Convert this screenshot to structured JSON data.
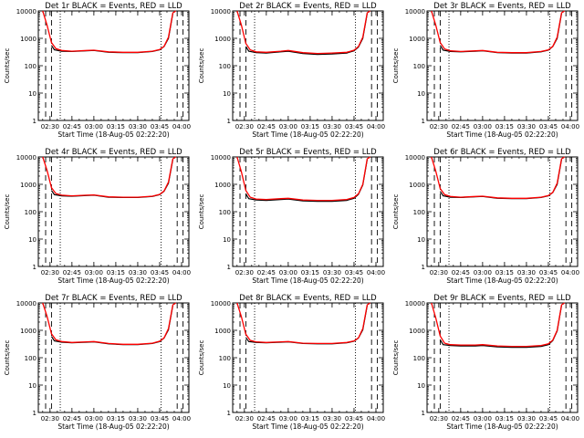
{
  "chart_data": [
    {
      "type": "line",
      "title": "Det 1r BLACK = Events, RED = LLD",
      "xlabel": "Start Time (18-Aug-05 02:22:20)",
      "ylabel": "Counts/sec",
      "yscale": "log",
      "ylim": [
        1,
        10000
      ],
      "xlim": [
        "02:22",
        "04:05"
      ],
      "x_ticks": [
        "02:30",
        "02:45",
        "03:00",
        "03:15",
        "03:30",
        "03:45",
        "04:00"
      ],
      "y_ticks": [
        "1",
        "10",
        "100",
        "1000",
        "10000"
      ],
      "vlines_dashed": [
        "02:27",
        "02:31",
        "03:57",
        "04:01"
      ],
      "vlines_dotted": [
        "02:37",
        "03:46"
      ],
      "series": [
        {
          "name": "BLACK = Events",
          "color": "#000000",
          "x": [
            "02:31",
            "02:33",
            "02:38",
            "02:45",
            "02:55",
            "03:00",
            "03:10",
            "03:20",
            "03:30",
            "03:40",
            "03:45",
            "03:48",
            "03:51",
            "03:54"
          ],
          "values": [
            550,
            380,
            340,
            330,
            350,
            360,
            310,
            300,
            300,
            330,
            380,
            500,
            1000,
            8000
          ]
        },
        {
          "name": "RED = LLD",
          "color": "#ff0000",
          "x": [
            "02:25",
            "02:28",
            "02:31",
            "02:34",
            "02:38",
            "02:45",
            "02:55",
            "03:00",
            "03:10",
            "03:20",
            "03:30",
            "03:40",
            "03:45",
            "03:48",
            "03:51",
            "03:54",
            "03:56"
          ],
          "values": [
            10000,
            3000,
            700,
            420,
            360,
            340,
            360,
            370,
            320,
            310,
            310,
            340,
            390,
            510,
            1100,
            8500,
            10000
          ]
        }
      ]
    },
    {
      "type": "line",
      "title": "Det 2r BLACK = Events, RED = LLD",
      "xlabel": "Start Time (18-Aug-05 02:22:20)",
      "ylabel": "Counts/sec",
      "yscale": "log",
      "ylim": [
        1,
        10000
      ],
      "xlim": [
        "02:22",
        "04:05"
      ],
      "x_ticks": [
        "02:30",
        "02:45",
        "03:00",
        "03:15",
        "03:30",
        "03:45",
        "04:00"
      ],
      "y_ticks": [
        "1",
        "10",
        "100",
        "1000",
        "10000"
      ],
      "vlines_dashed": [
        "02:27",
        "02:31",
        "03:57",
        "04:01"
      ],
      "vlines_dotted": [
        "02:37",
        "03:46"
      ],
      "series": [
        {
          "name": "BLACK = Events",
          "color": "#000000",
          "x": [
            "02:31",
            "02:33",
            "02:38",
            "02:45",
            "02:55",
            "03:00",
            "03:10",
            "03:20",
            "03:30",
            "03:40",
            "03:45",
            "03:48",
            "03:51",
            "03:54"
          ],
          "values": [
            500,
            340,
            300,
            290,
            320,
            340,
            280,
            260,
            270,
            290,
            350,
            480,
            1000,
            8000
          ]
        },
        {
          "name": "RED = LLD",
          "color": "#ff0000",
          "x": [
            "02:25",
            "02:28",
            "02:31",
            "02:34",
            "02:38",
            "02:45",
            "02:55",
            "03:00",
            "03:10",
            "03:20",
            "03:30",
            "03:40",
            "03:45",
            "03:48",
            "03:51",
            "03:54",
            "03:56"
          ],
          "values": [
            10000,
            3000,
            650,
            380,
            320,
            310,
            340,
            360,
            300,
            280,
            290,
            310,
            370,
            500,
            1100,
            8500,
            10000
          ]
        }
      ]
    },
    {
      "type": "line",
      "title": "Det 3r BLACK = Events, RED = LLD",
      "xlabel": "Start Time (18-Aug-05 02:22:20)",
      "ylabel": "Counts/sec",
      "yscale": "log",
      "ylim": [
        1,
        10000
      ],
      "xlim": [
        "02:22",
        "04:05"
      ],
      "x_ticks": [
        "02:30",
        "02:45",
        "03:00",
        "03:15",
        "03:30",
        "03:45",
        "04:00"
      ],
      "y_ticks": [
        "1",
        "10",
        "100",
        "1000",
        "10000"
      ],
      "vlines_dashed": [
        "02:27",
        "02:31",
        "03:57",
        "04:01"
      ],
      "vlines_dotted": [
        "02:37",
        "03:46"
      ],
      "series": [
        {
          "name": "BLACK = Events",
          "color": "#000000",
          "x": [
            "02:31",
            "02:33",
            "02:38",
            "02:45",
            "02:55",
            "03:00",
            "03:10",
            "03:20",
            "03:30",
            "03:40",
            "03:45",
            "03:48",
            "03:51",
            "03:54"
          ],
          "values": [
            550,
            370,
            330,
            320,
            340,
            350,
            300,
            290,
            290,
            320,
            370,
            500,
            1000,
            8000
          ]
        },
        {
          "name": "RED = LLD",
          "color": "#ff0000",
          "x": [
            "02:25",
            "02:28",
            "02:31",
            "02:34",
            "02:38",
            "02:45",
            "02:55",
            "03:00",
            "03:10",
            "03:20",
            "03:30",
            "03:40",
            "03:45",
            "03:48",
            "03:51",
            "03:54",
            "03:56"
          ],
          "values": [
            10000,
            3000,
            700,
            410,
            350,
            330,
            350,
            360,
            310,
            300,
            300,
            330,
            380,
            510,
            1100,
            8500,
            10000
          ]
        }
      ]
    },
    {
      "type": "line",
      "title": "Det 4r BLACK = Events, RED = LLD",
      "xlabel": "Start Time (18-Aug-05 02:22:20)",
      "ylabel": "Counts/sec",
      "yscale": "log",
      "ylim": [
        1,
        10000
      ],
      "xlim": [
        "02:22",
        "04:05"
      ],
      "x_ticks": [
        "02:30",
        "02:45",
        "03:00",
        "03:15",
        "03:30",
        "03:45",
        "04:00"
      ],
      "y_ticks": [
        "1",
        "10",
        "100",
        "1000",
        "10000"
      ],
      "vlines_dashed": [
        "02:27",
        "02:31",
        "03:57",
        "04:01"
      ],
      "vlines_dotted": [
        "02:37",
        "03:46"
      ],
      "series": [
        {
          "name": "BLACK = Events",
          "color": "#000000",
          "x": [
            "02:31",
            "02:33",
            "02:38",
            "02:45",
            "02:55",
            "03:00",
            "03:10",
            "03:20",
            "03:30",
            "03:40",
            "03:45",
            "03:48",
            "03:51",
            "03:54"
          ],
          "values": [
            600,
            420,
            380,
            370,
            390,
            400,
            340,
            330,
            330,
            360,
            420,
            560,
            1100,
            8000
          ]
        },
        {
          "name": "RED = LLD",
          "color": "#ff0000",
          "x": [
            "02:25",
            "02:28",
            "02:31",
            "02:34",
            "02:38",
            "02:45",
            "02:55",
            "03:00",
            "03:10",
            "03:20",
            "03:30",
            "03:40",
            "03:45",
            "03:48",
            "03:51",
            "03:54",
            "03:56"
          ],
          "values": [
            10000,
            3200,
            750,
            460,
            400,
            380,
            400,
            410,
            350,
            340,
            340,
            370,
            430,
            570,
            1200,
            8500,
            10000
          ]
        }
      ]
    },
    {
      "type": "line",
      "title": "Det 5r BLACK = Events, RED = LLD",
      "xlabel": "Start Time (18-Aug-05 02:22:20)",
      "ylabel": "Counts/sec",
      "yscale": "log",
      "ylim": [
        1,
        10000
      ],
      "xlim": [
        "02:22",
        "04:05"
      ],
      "x_ticks": [
        "02:30",
        "02:45",
        "03:00",
        "03:15",
        "03:30",
        "03:45",
        "04:00"
      ],
      "y_ticks": [
        "1",
        "10",
        "100",
        "1000",
        "10000"
      ],
      "vlines_dashed": [
        "02:27",
        "02:31",
        "03:57",
        "04:01"
      ],
      "vlines_dotted": [
        "02:37",
        "03:46"
      ],
      "series": [
        {
          "name": "BLACK = Events",
          "color": "#000000",
          "x": [
            "02:31",
            "02:33",
            "02:38",
            "02:45",
            "02:55",
            "03:00",
            "03:10",
            "03:20",
            "03:30",
            "03:40",
            "03:45",
            "03:48",
            "03:51",
            "03:54"
          ],
          "values": [
            450,
            300,
            270,
            260,
            280,
            290,
            250,
            240,
            240,
            260,
            310,
            430,
            950,
            8000
          ]
        },
        {
          "name": "RED = LLD",
          "color": "#ff0000",
          "x": [
            "02:25",
            "02:28",
            "02:31",
            "02:34",
            "02:38",
            "02:45",
            "02:55",
            "03:00",
            "03:10",
            "03:20",
            "03:30",
            "03:40",
            "03:45",
            "03:48",
            "03:51",
            "03:54",
            "03:56"
          ],
          "values": [
            10000,
            2800,
            600,
            340,
            290,
            280,
            300,
            310,
            270,
            260,
            260,
            280,
            330,
            450,
            1000,
            8500,
            10000
          ]
        }
      ]
    },
    {
      "type": "line",
      "title": "Det 6r BLACK = Events, RED = LLD",
      "xlabel": "Start Time (18-Aug-05 02:22:20)",
      "ylabel": "Counts/sec",
      "yscale": "log",
      "ylim": [
        1,
        10000
      ],
      "xlim": [
        "02:22",
        "04:05"
      ],
      "x_ticks": [
        "02:30",
        "02:45",
        "03:00",
        "03:15",
        "03:30",
        "03:45",
        "04:00"
      ],
      "y_ticks": [
        "1",
        "10",
        "100",
        "1000",
        "10000"
      ],
      "vlines_dashed": [
        "02:27",
        "02:31",
        "03:57",
        "04:01"
      ],
      "vlines_dotted": [
        "02:37",
        "03:46"
      ],
      "series": [
        {
          "name": "BLACK = Events",
          "color": "#000000",
          "x": [
            "02:31",
            "02:33",
            "02:38",
            "02:45",
            "02:55",
            "03:00",
            "03:10",
            "03:20",
            "03:30",
            "03:40",
            "03:45",
            "03:48",
            "03:51",
            "03:54"
          ],
          "values": [
            550,
            380,
            340,
            330,
            350,
            360,
            310,
            300,
            300,
            330,
            380,
            500,
            1000,
            8000
          ]
        },
        {
          "name": "RED = LLD",
          "color": "#ff0000",
          "x": [
            "02:25",
            "02:28",
            "02:31",
            "02:34",
            "02:38",
            "02:45",
            "02:55",
            "03:00",
            "03:10",
            "03:20",
            "03:30",
            "03:40",
            "03:45",
            "03:48",
            "03:51",
            "03:54",
            "03:56"
          ],
          "values": [
            10000,
            3000,
            700,
            420,
            360,
            340,
            360,
            370,
            320,
            310,
            310,
            340,
            390,
            510,
            1100,
            8500,
            10000
          ]
        }
      ]
    },
    {
      "type": "line",
      "title": "Det 7r BLACK = Events, RED = LLD",
      "xlabel": "Start Time (18-Aug-05 02:22:20)",
      "ylabel": "Counts/sec",
      "yscale": "log",
      "ylim": [
        1,
        10000
      ],
      "xlim": [
        "02:22",
        "04:05"
      ],
      "x_ticks": [
        "02:30",
        "02:45",
        "03:00",
        "03:15",
        "03:30",
        "03:45",
        "04:00"
      ],
      "y_ticks": [
        "1",
        "10",
        "100",
        "1000",
        "10000"
      ],
      "vlines_dashed": [
        "02:27",
        "02:31",
        "03:57",
        "04:01"
      ],
      "vlines_dotted": [
        "02:37",
        "03:46"
      ],
      "series": [
        {
          "name": "BLACK = Events",
          "color": "#000000",
          "x": [
            "02:31",
            "02:33",
            "02:38",
            "02:45",
            "02:55",
            "03:00",
            "03:10",
            "03:20",
            "03:30",
            "03:40",
            "03:45",
            "03:48",
            "03:51",
            "03:54"
          ],
          "values": [
            600,
            410,
            370,
            350,
            370,
            380,
            320,
            300,
            300,
            330,
            390,
            520,
            1050,
            8000
          ]
        },
        {
          "name": "RED = LLD",
          "color": "#ff0000",
          "x": [
            "02:25",
            "02:28",
            "02:31",
            "02:34",
            "02:38",
            "02:45",
            "02:55",
            "03:00",
            "03:10",
            "03:20",
            "03:30",
            "03:40",
            "03:45",
            "03:48",
            "03:51",
            "03:54",
            "03:56"
          ],
          "values": [
            10000,
            3200,
            750,
            450,
            390,
            360,
            380,
            390,
            330,
            310,
            310,
            340,
            400,
            530,
            1150,
            8500,
            10000
          ]
        }
      ]
    },
    {
      "type": "line",
      "title": "Det 8r BLACK = Events, RED = LLD",
      "xlabel": "Start Time (18-Aug-05 02:22:20)",
      "ylabel": "Counts/sec",
      "yscale": "log",
      "ylim": [
        1,
        10000
      ],
      "xlim": [
        "02:22",
        "04:05"
      ],
      "x_ticks": [
        "02:30",
        "02:45",
        "03:00",
        "03:15",
        "03:30",
        "03:45",
        "04:00"
      ],
      "y_ticks": [
        "1",
        "10",
        "100",
        "1000",
        "10000"
      ],
      "vlines_dashed": [
        "02:27",
        "02:31",
        "03:57",
        "04:01"
      ],
      "vlines_dotted": [
        "02:37",
        "03:46"
      ],
      "series": [
        {
          "name": "BLACK = Events",
          "color": "#000000",
          "x": [
            "02:31",
            "02:33",
            "02:38",
            "02:45",
            "02:55",
            "03:00",
            "03:10",
            "03:20",
            "03:30",
            "03:40",
            "03:45",
            "03:48",
            "03:51",
            "03:54"
          ],
          "values": [
            550,
            390,
            360,
            350,
            370,
            380,
            330,
            320,
            320,
            350,
            400,
            520,
            1050,
            8000
          ]
        },
        {
          "name": "RED = LLD",
          "color": "#ff0000",
          "x": [
            "02:25",
            "02:28",
            "02:31",
            "02:34",
            "02:38",
            "02:45",
            "02:55",
            "03:00",
            "03:10",
            "03:20",
            "03:30",
            "03:40",
            "03:45",
            "03:48",
            "03:51",
            "03:54",
            "03:56"
          ],
          "values": [
            10000,
            3100,
            720,
            430,
            380,
            360,
            380,
            390,
            340,
            330,
            330,
            360,
            410,
            530,
            1150,
            8500,
            10000
          ]
        }
      ]
    },
    {
      "type": "line",
      "title": "Det 9r BLACK = Events, RED = LLD",
      "xlabel": "Start Time (18-Aug-05 02:22:20)",
      "ylabel": "Counts/sec",
      "yscale": "log",
      "ylim": [
        1,
        10000
      ],
      "xlim": [
        "02:22",
        "04:05"
      ],
      "x_ticks": [
        "02:30",
        "02:45",
        "03:00",
        "03:15",
        "03:30",
        "03:45",
        "04:00"
      ],
      "y_ticks": [
        "1",
        "10",
        "100",
        "1000",
        "10000"
      ],
      "vlines_dashed": [
        "02:27",
        "02:31",
        "03:57",
        "04:01"
      ],
      "vlines_dotted": [
        "02:37",
        "03:46"
      ],
      "series": [
        {
          "name": "BLACK = Events",
          "color": "#000000",
          "x": [
            "02:31",
            "02:33",
            "02:38",
            "02:45",
            "02:55",
            "03:00",
            "03:10",
            "03:20",
            "03:30",
            "03:40",
            "03:45",
            "03:48",
            "03:51",
            "03:54"
          ],
          "values": [
            450,
            300,
            280,
            270,
            270,
            280,
            250,
            240,
            240,
            260,
            300,
            420,
            950,
            8000
          ]
        },
        {
          "name": "RED = LLD",
          "color": "#ff0000",
          "x": [
            "02:25",
            "02:28",
            "02:31",
            "02:34",
            "02:38",
            "02:45",
            "02:55",
            "03:00",
            "03:10",
            "03:20",
            "03:30",
            "03:40",
            "03:45",
            "03:48",
            "03:51",
            "03:54",
            "03:56"
          ],
          "values": [
            10000,
            2800,
            620,
            340,
            300,
            290,
            290,
            300,
            270,
            260,
            260,
            280,
            320,
            440,
            1000,
            8500,
            10000
          ]
        }
      ]
    }
  ]
}
